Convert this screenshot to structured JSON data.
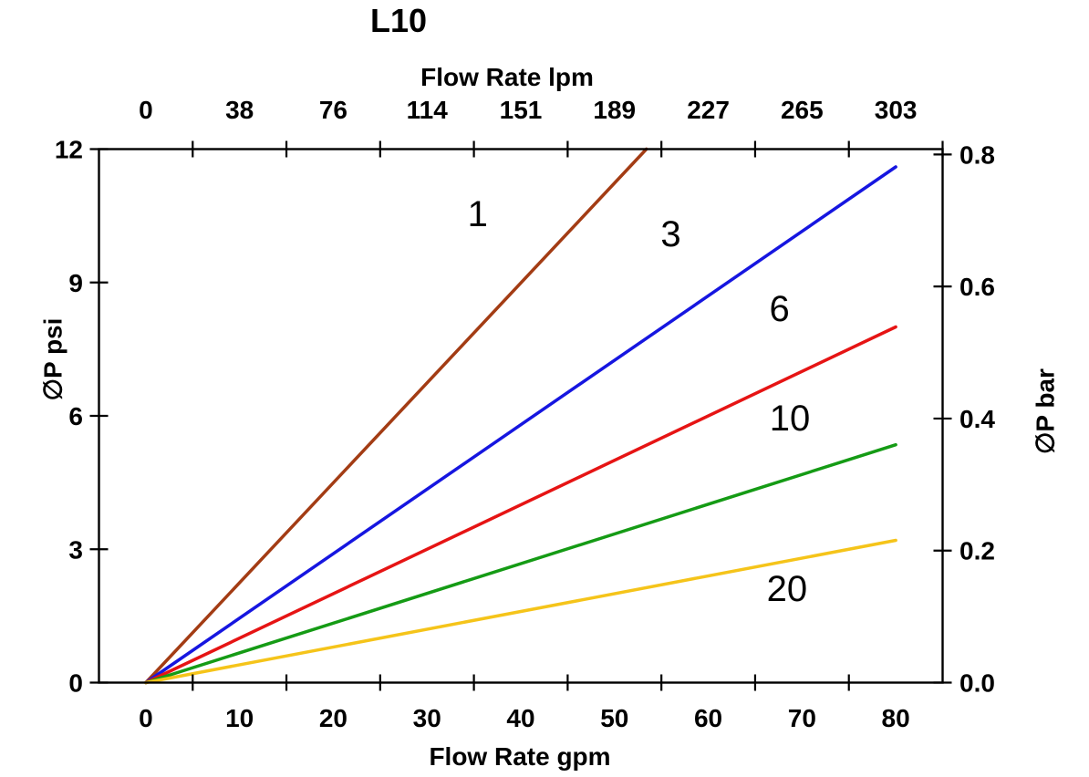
{
  "chart_data": {
    "type": "line",
    "title": "L10",
    "axes": {
      "top": {
        "label": "Flow Rate lpm",
        "tick_labels": [
          "0",
          "38",
          "76",
          "114",
          "151",
          "189",
          "227",
          "265",
          "303"
        ],
        "tick_label_positions_gpm": [
          0,
          10,
          20,
          30,
          40,
          50,
          60,
          70,
          80
        ],
        "tick_marks_gpm": [
          5,
          15,
          25,
          35,
          45,
          55,
          65,
          75,
          85
        ]
      },
      "bottom": {
        "label": "Flow Rate gpm",
        "tick_labels": [
          "0",
          "10",
          "20",
          "30",
          "40",
          "50",
          "60",
          "70",
          "80"
        ],
        "tick_label_positions_gpm": [
          0,
          10,
          20,
          30,
          40,
          50,
          60,
          70,
          80
        ],
        "tick_marks_gpm": [
          5,
          15,
          25,
          35,
          45,
          55,
          65,
          75
        ],
        "range_gpm": [
          -5,
          85
        ]
      },
      "left": {
        "label": "∅P psi",
        "tick_labels": [
          "0",
          "3",
          "6",
          "9",
          "12"
        ],
        "ticks_psi": [
          0,
          3,
          6,
          9,
          12
        ],
        "range_psi": [
          0,
          12
        ]
      },
      "right": {
        "label": "∅P bar",
        "tick_labels": [
          "0.0",
          "0.2",
          "0.4",
          "0.6",
          "0.8"
        ],
        "ticks_bar": [
          0.0,
          0.2,
          0.4,
          0.6,
          0.8
        ],
        "psi_per_bar": 14.85
      }
    },
    "series": [
      {
        "label": "1",
        "color": "#A33C14",
        "points_gpm_psi": [
          [
            0,
            0
          ],
          [
            53.4,
            12.0
          ]
        ],
        "label_at_gpm_psi": [
          35.4,
          10.55
        ]
      },
      {
        "label": "3",
        "color": "#1616E0",
        "points_gpm_psi": [
          [
            0,
            0
          ],
          [
            80.0,
            11.6
          ]
        ],
        "label_at_gpm_psi": [
          56.0,
          10.1
        ]
      },
      {
        "label": "6",
        "color": "#E61414",
        "points_gpm_psi": [
          [
            0,
            0
          ],
          [
            80.0,
            8.0
          ]
        ],
        "label_at_gpm_psi": [
          67.6,
          8.42
        ]
      },
      {
        "label": "10",
        "color": "#159B15",
        "points_gpm_psi": [
          [
            0,
            0
          ],
          [
            80.0,
            5.35
          ]
        ],
        "label_at_gpm_psi": [
          68.7,
          5.96
        ]
      },
      {
        "label": "20",
        "color": "#F5C41A",
        "points_gpm_psi": [
          [
            0,
            0
          ],
          [
            80.0,
            3.2
          ]
        ],
        "label_at_gpm_psi": [
          68.4,
          2.12
        ]
      }
    ],
    "frame_color": "#000000",
    "text_color": "#000000"
  }
}
